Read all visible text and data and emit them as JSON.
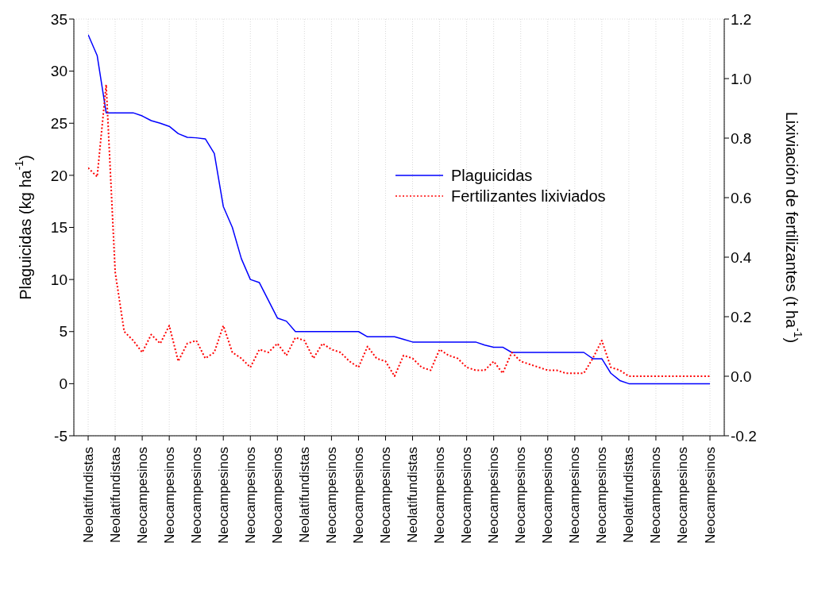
{
  "chart_data": {
    "type": "line",
    "ylabel": "Plaguicidas (kg ha$^{-1}$)",
    "y2label": "Lixiviación de fertilizantes (t ha$^{-1}$)",
    "categories": [
      "Neolatifundistas",
      null,
      null,
      "Neolatifundistas",
      null,
      null,
      "Neocampesinos",
      null,
      null,
      "Neocampesinos",
      null,
      null,
      "Neocampesinos",
      null,
      null,
      "Neocampesinos",
      null,
      null,
      "Neocampesinos",
      null,
      null,
      "Neocampesinos",
      null,
      null,
      "Neolatifundistas",
      null,
      null,
      "Neocampesinos",
      null,
      null,
      "Neocampesinos",
      null,
      null,
      "Neocampesinos",
      null,
      null,
      "Neolatifundistas",
      null,
      null,
      "Neocampesinos",
      null,
      null,
      "Neocampesinos",
      null,
      null,
      "Neocampesinos",
      null,
      null,
      "Neocampesinos",
      null,
      null,
      "Neocampesinos",
      null,
      null,
      "Neocampesinos",
      null,
      null,
      "Neocampesinos",
      null,
      null,
      "Neolatifundistas",
      null,
      null,
      "Neocampesinos",
      null,
      null,
      "Neocampesinos",
      null,
      null,
      "Neocampesinos"
    ],
    "series": [
      {
        "name": "Plaguicidas",
        "color": "#0000ff",
        "line_style": "solid",
        "values": [
          33.5,
          31.5,
          26,
          26,
          26,
          26,
          25.7,
          25.25,
          25,
          24.7,
          24,
          23.65,
          23.6,
          23.5,
          22.1,
          17,
          15,
          12,
          10,
          9.7,
          8,
          6.3,
          6,
          5,
          5,
          5,
          5,
          5,
          5,
          5,
          5,
          4.5,
          4.5,
          4.5,
          4.5,
          4.25,
          4,
          4,
          4,
          4,
          4,
          4,
          4,
          4,
          3.7,
          3.5,
          3.5,
          3,
          3,
          3,
          3,
          3,
          3,
          3,
          3,
          3,
          2.4,
          2.4,
          1,
          0.3,
          0,
          0,
          0,
          0,
          0,
          0,
          0,
          0,
          0,
          0
        ]
      },
      {
        "name": "Fertilizantes lixiviados",
        "color": "#ff0000",
        "line_style": "dotted",
        "axis": "y2",
        "values": [
          0.7,
          0.67,
          0.98,
          0.35,
          0.15,
          0.12,
          0.08,
          0.14,
          0.11,
          0.17,
          0.05,
          0.11,
          0.12,
          0.06,
          0.08,
          0.17,
          0.08,
          0.06,
          0.03,
          0.09,
          0.08,
          0.11,
          0.07,
          0.13,
          0.12,
          0.06,
          0.11,
          0.09,
          0.08,
          0.05,
          0.03,
          0.1,
          0.06,
          0.05,
          0,
          0.07,
          0.06,
          0.03,
          0.02,
          0.09,
          0.07,
          0.06,
          0.03,
          0.02,
          0.02,
          0.05,
          0.01,
          0.08,
          0.05,
          0.04,
          0.03,
          0.02,
          0.02,
          0.01,
          0.01,
          0.01,
          0.06,
          0.12,
          0.03,
          0.02,
          0,
          0,
          0,
          0,
          0,
          0,
          0,
          0,
          0,
          0
        ]
      }
    ],
    "ylim": [
      -5,
      35
    ],
    "yticks": [
      -5,
      0,
      5,
      10,
      15,
      20,
      25,
      30,
      35
    ],
    "y2lim": [
      -0.2,
      1.2
    ],
    "y2ticks": [
      {
        "value": -0.2,
        "label": "-0.2"
      },
      {
        "value": 0,
        "label": "0.0"
      },
      {
        "value": 0.2,
        "label": "0.2"
      },
      {
        "value": 0.4,
        "label": "0.4"
      },
      {
        "value": 0.6,
        "label": "0.6"
      },
      {
        "value": 0.8,
        "label": "0.8"
      },
      {
        "value": 1,
        "label": "1.0"
      },
      {
        "value": 1.2,
        "label": "1.2"
      }
    ],
    "grid": true,
    "legend": "top right"
  }
}
